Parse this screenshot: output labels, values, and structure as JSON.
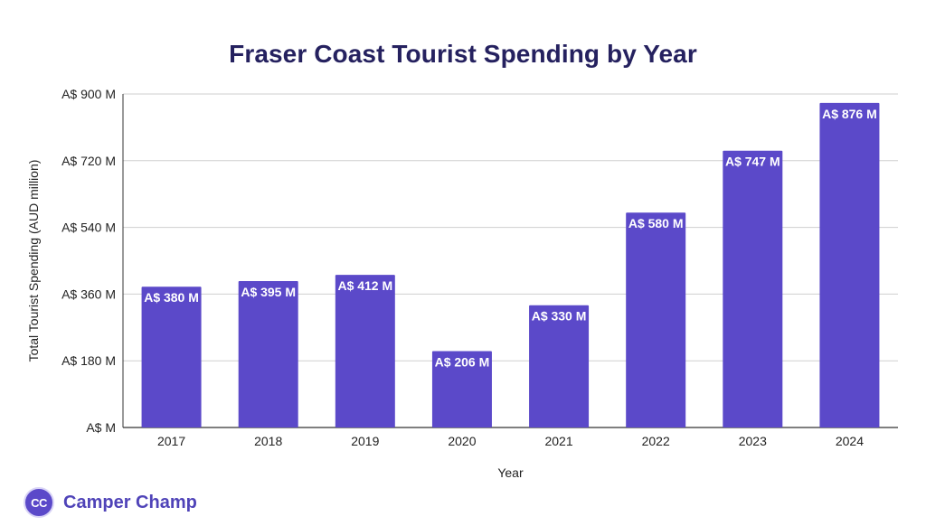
{
  "chart_data": {
    "type": "bar",
    "title": "Fraser Coast Tourist Spending by Year",
    "xlabel": "Year",
    "ylabel": "Total Tourist Spending (AUD million)",
    "categories": [
      "2017",
      "2018",
      "2019",
      "2020",
      "2021",
      "2022",
      "2023",
      "2024"
    ],
    "values": [
      380,
      395,
      412,
      206,
      330,
      580,
      747,
      876
    ],
    "data_labels": [
      "A$ 380 M",
      "A$ 395 M",
      "A$ 412 M",
      "A$ 206 M",
      "A$ 330 M",
      "A$ 580 M",
      "A$ 747 M",
      "A$ 876 M"
    ],
    "ylim": [
      0,
      900
    ],
    "yticks": [
      0,
      180,
      360,
      540,
      720,
      900
    ],
    "ytick_labels": [
      "A$  M",
      "A$ 180 M",
      "A$ 360 M",
      "A$ 540 M",
      "A$ 720 M",
      "A$ 900 M"
    ],
    "grid": true,
    "bar_color": "#5b49c9"
  },
  "brand": {
    "name": "Camper Champ",
    "logo_text": "CC",
    "color": "#4f43b8"
  }
}
